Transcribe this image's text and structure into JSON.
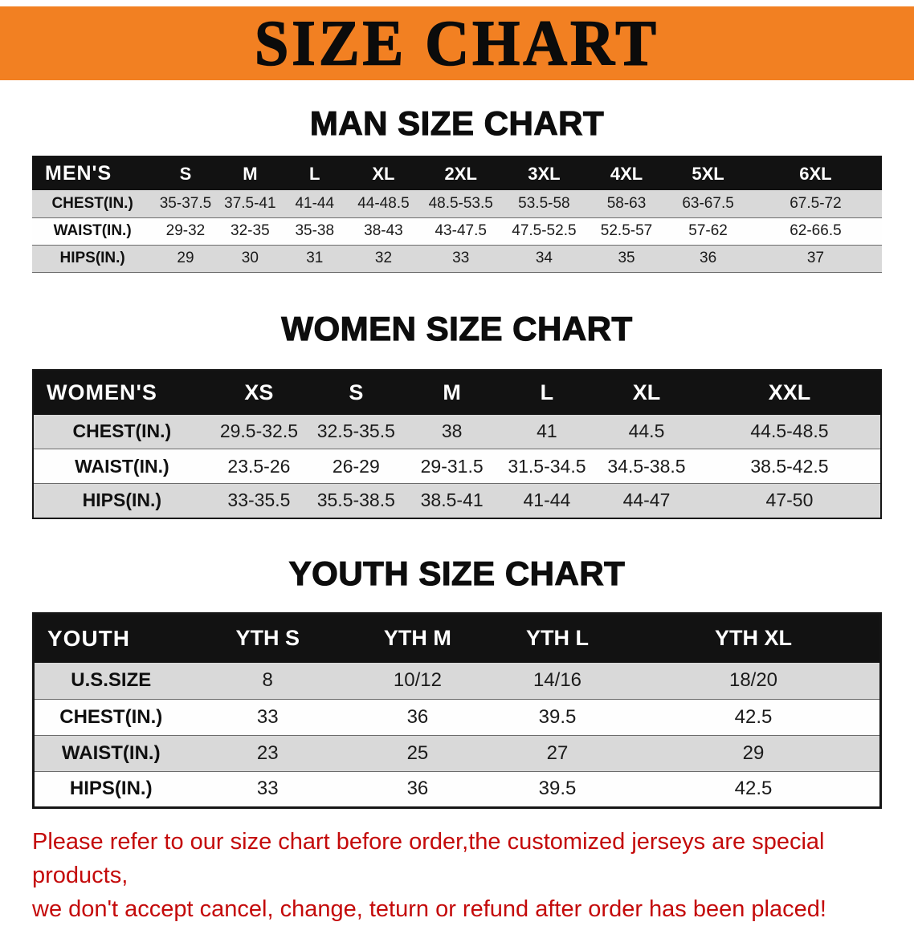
{
  "banner": {
    "title": "SIZE CHART",
    "background": "#F28022"
  },
  "sections": [
    {
      "id": "men",
      "heading": "MAN SIZE CHART",
      "table": {
        "header": [
          "MEN'S",
          "S",
          "M",
          "L",
          "XL",
          "2XL",
          "3XL",
          "4XL",
          "5XL",
          "6XL"
        ],
        "rows": [
          [
            "CHEST(IN.)",
            "35-37.5",
            "37.5-41",
            "41-44",
            "44-48.5",
            "48.5-53.5",
            "53.5-58",
            "58-63",
            "63-67.5",
            "67.5-72"
          ],
          [
            "WAIST(IN.)",
            "29-32",
            "32-35",
            "35-38",
            "38-43",
            "43-47.5",
            "47.5-52.5",
            "52.5-57",
            "57-62",
            "62-66.5"
          ],
          [
            "HIPS(IN.)",
            "29",
            "30",
            "31",
            "32",
            "33",
            "34",
            "35",
            "36",
            "37"
          ]
        ]
      }
    },
    {
      "id": "women",
      "heading": "WOMEN SIZE CHART",
      "table": {
        "header": [
          "WOMEN'S",
          "XS",
          "S",
          "M",
          "L",
          "XL",
          "XXL"
        ],
        "rows": [
          [
            "CHEST(IN.)",
            "29.5-32.5",
            "32.5-35.5",
            "38",
            "41",
            "44.5",
            "44.5-48.5"
          ],
          [
            "WAIST(IN.)",
            "23.5-26",
            "26-29",
            "29-31.5",
            "31.5-34.5",
            "34.5-38.5",
            "38.5-42.5"
          ],
          [
            "HIPS(IN.)",
            "33-35.5",
            "35.5-38.5",
            "38.5-41",
            "41-44",
            "44-47",
            "47-50"
          ]
        ]
      }
    },
    {
      "id": "youth",
      "heading": "YOUTH SIZE CHART",
      "table": {
        "header": [
          "YOUTH",
          "YTH S",
          "YTH M",
          "YTH L",
          "YTH XL"
        ],
        "rows": [
          [
            "U.S.SIZE",
            "8",
            "10/12",
            "14/16",
            "18/20"
          ],
          [
            "CHEST(IN.)",
            "33",
            "36",
            "39.5",
            "42.5"
          ],
          [
            "WAIST(IN.)",
            "23",
            "25",
            "27",
            "29"
          ],
          [
            "HIPS(IN.)",
            "33",
            "36",
            "39.5",
            "42.5"
          ]
        ]
      }
    }
  ],
  "disclaimer": {
    "color": "#c40a0a",
    "lines": [
      "Please refer to our size chart before order,the customized jerseys are special products,",
      "we don't accept cancel, change, teturn or refund after order has been placed!"
    ]
  }
}
